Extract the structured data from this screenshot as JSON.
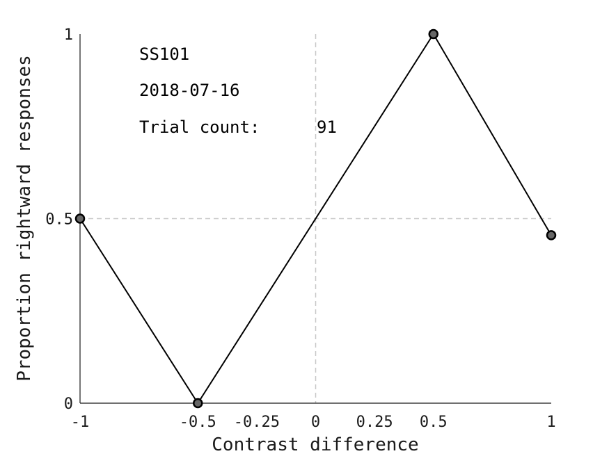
{
  "chart_data": {
    "type": "line",
    "title": "",
    "xlabel": "Contrast difference",
    "ylabel": "Proportion rightward responses",
    "xlim": [
      -1,
      1
    ],
    "ylim": [
      0,
      1
    ],
    "xticks": [
      -1,
      -0.5,
      -0.25,
      0,
      0.25,
      0.5,
      1
    ],
    "xtick_labels": [
      "-1",
      "-0.5",
      "-0.25",
      "0",
      "0.25",
      "0.5",
      "1"
    ],
    "yticks": [
      0,
      0.5,
      1
    ],
    "ytick_labels": [
      "0",
      "0.5",
      "1"
    ],
    "reference_lines": {
      "x": 0,
      "y": 0.5,
      "style": "dashed"
    },
    "grid": false,
    "series": [
      {
        "x": [
          -1,
          -0.5,
          0.5,
          1
        ],
        "y": [
          0.5,
          0,
          1,
          0.455
        ],
        "markers": true,
        "line_color": "#000000",
        "marker_fill": "#666666"
      }
    ],
    "annotations": {
      "subject": "SS101",
      "date": "2018-07-16",
      "trial_count_label": "Trial count:",
      "trial_count_value": "91"
    }
  }
}
